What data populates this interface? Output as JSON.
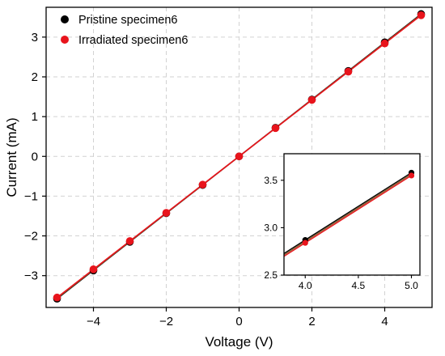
{
  "chart_data": [
    {
      "type": "line",
      "xlabel": "Voltage (V)",
      "ylabel": "Current (mA)",
      "xlim": [
        -5.3,
        5.3
      ],
      "ylim": [
        -3.8,
        3.75
      ],
      "xticks": [
        -4,
        -2,
        0,
        2,
        4
      ],
      "yticks": [
        -3,
        -2,
        -1,
        0,
        1,
        2,
        3
      ],
      "xtick_labels": [
        "−4",
        "−2",
        "0",
        "2",
        "4"
      ],
      "ytick_labels": [
        "−3",
        "−2",
        "−1",
        "0",
        "1",
        "2",
        "3"
      ],
      "grid": true,
      "legend": "top-left",
      "x": [
        -5,
        -4,
        -3,
        -2,
        -1,
        0,
        1,
        2,
        3,
        4,
        5
      ],
      "series": [
        {
          "name": "Pristine specimen6",
          "color": "#000000",
          "values": [
            -3.58,
            -2.87,
            -2.15,
            -1.43,
            -0.72,
            0.0,
            0.72,
            1.43,
            2.15,
            2.87,
            3.58
          ]
        },
        {
          "name": "Irradiated specimen6",
          "color": "#e8141c",
          "values": [
            -3.55,
            -2.84,
            -2.13,
            -1.42,
            -0.71,
            0.0,
            0.71,
            1.42,
            2.13,
            2.84,
            3.55
          ]
        }
      ],
      "fit_line_colors": [
        "#000000",
        "#e8141c",
        "#8a5a2b"
      ]
    },
    {
      "type": "line",
      "role": "inset",
      "xlim": [
        3.8,
        5.08
      ],
      "ylim": [
        2.5,
        3.78
      ],
      "xticks": [
        4.0,
        4.5,
        5.0
      ],
      "yticks": [
        2.5,
        3.0,
        3.5
      ],
      "xtick_labels": [
        "4.0",
        "4.5",
        "5.0"
      ],
      "ytick_labels": [
        "2.5",
        "3.0",
        "3.5"
      ],
      "grid": false,
      "x": [
        4,
        5
      ],
      "series": [
        {
          "name": "Pristine specimen6",
          "color": "#000000",
          "values": [
            2.87,
            3.58
          ]
        },
        {
          "name": "Irradiated specimen6",
          "color": "#e8141c",
          "values": [
            2.84,
            3.55
          ]
        }
      ]
    }
  ]
}
